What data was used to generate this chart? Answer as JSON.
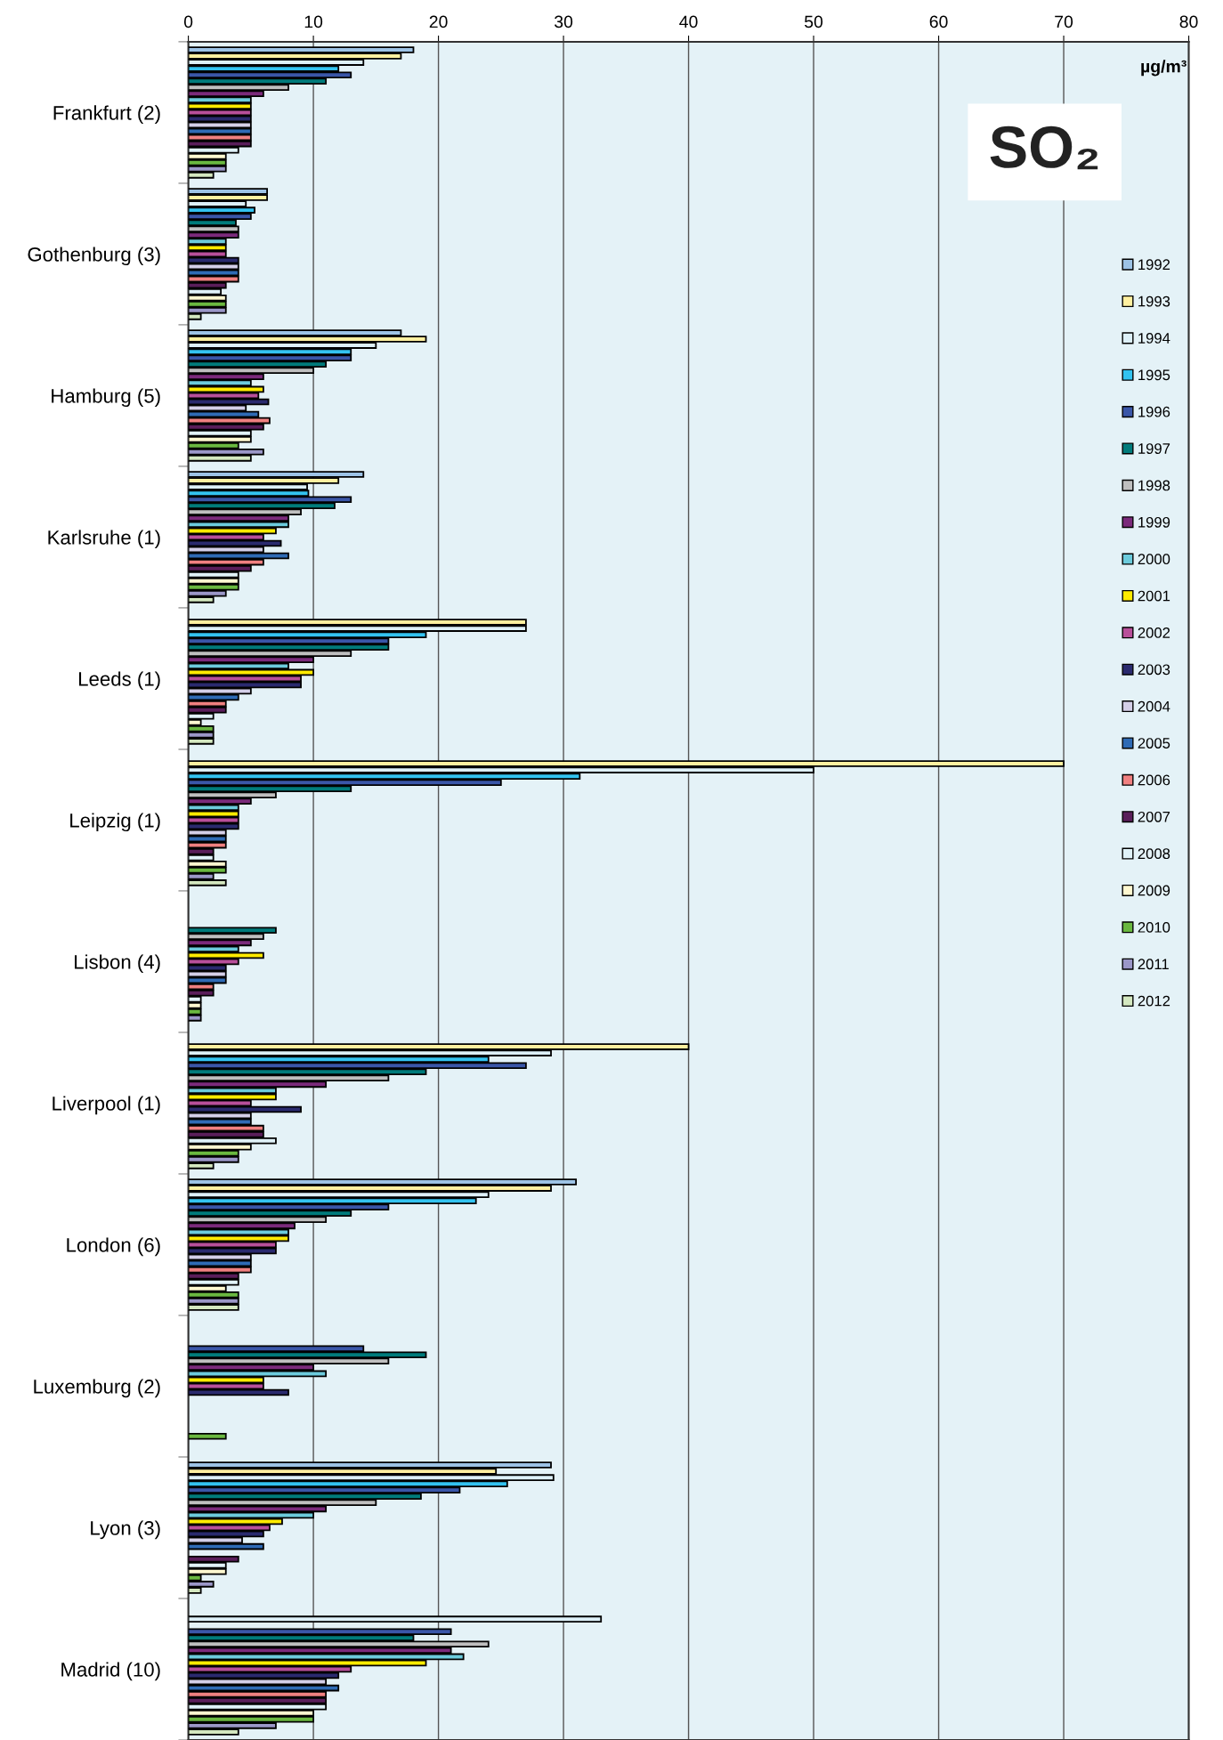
{
  "chart_data": {
    "type": "bar",
    "orientation": "horizontal",
    "title": "SO₂",
    "xlabel": "µg/m³",
    "categories": [
      "Frankfurt (2)",
      "Gothenburg (3)",
      "Hamburg (5)",
      "Karlsruhe (1)",
      "Leeds (1)",
      "Leipzig (1)",
      "Lisbon (4)",
      "Liverpool (1)",
      "London (6)",
      "Luxemburg (2)",
      "Lyon (3)",
      "Madrid (10)"
    ],
    "xlim": [
      0,
      80
    ],
    "xticks": [
      0,
      10,
      20,
      30,
      40,
      50,
      60,
      70,
      80
    ],
    "grid": "x",
    "legend": "top right",
    "series": [
      {
        "name": "1992",
        "color": "#9dc3e6",
        "values": [
          18,
          6.3,
          17,
          14,
          null,
          null,
          null,
          null,
          31,
          null,
          29,
          null
        ]
      },
      {
        "name": "1993",
        "color": "#fff0a0",
        "values": [
          17,
          6.3,
          19,
          12,
          27,
          70,
          null,
          40,
          29,
          null,
          24.6,
          null
        ]
      },
      {
        "name": "1994",
        "color": "#ddf0f8",
        "values": [
          14,
          4.6,
          15,
          9.5,
          27,
          50,
          null,
          29,
          24,
          null,
          29.2,
          33
        ]
      },
      {
        "name": "1995",
        "color": "#33c3f0",
        "values": [
          12,
          5.3,
          13,
          9.6,
          19,
          31.3,
          null,
          24,
          23,
          null,
          25.5,
          null
        ]
      },
      {
        "name": "1996",
        "color": "#3a56a8",
        "values": [
          13,
          5,
          13,
          13,
          16,
          25,
          null,
          27,
          16,
          14,
          21.7,
          21
        ]
      },
      {
        "name": "1997",
        "color": "#007b7b",
        "values": [
          11,
          3.8,
          11,
          11.7,
          16,
          13,
          7,
          19,
          13,
          19,
          18.6,
          18
        ]
      },
      {
        "name": "1998",
        "color": "#bfbfbf",
        "values": [
          8,
          4,
          10,
          9,
          13,
          7,
          6,
          16,
          11,
          16,
          15,
          24
        ]
      },
      {
        "name": "1999",
        "color": "#7b2a7b",
        "values": [
          6,
          4,
          6,
          8,
          10,
          5,
          5,
          11,
          8.5,
          10,
          11,
          21
        ]
      },
      {
        "name": "2000",
        "color": "#6ccbdc",
        "values": [
          5,
          3,
          5,
          8,
          8,
          4,
          4,
          7,
          8,
          11,
          10,
          22
        ]
      },
      {
        "name": "2001",
        "color": "#ffeb00",
        "values": [
          5,
          3,
          6,
          7,
          10,
          4,
          6,
          7,
          8,
          6,
          7.5,
          19
        ]
      },
      {
        "name": "2002",
        "color": "#b84f9a",
        "values": [
          5,
          3,
          5.6,
          6,
          9,
          4,
          4,
          5,
          7,
          6,
          6.5,
          13
        ]
      },
      {
        "name": "2003",
        "color": "#2a2a6e",
        "values": [
          5,
          4,
          6.4,
          7.4,
          9,
          4,
          3,
          9,
          7,
          8,
          6,
          12
        ]
      },
      {
        "name": "2004",
        "color": "#d4cfe8",
        "values": [
          5,
          4,
          4.6,
          6,
          5,
          3,
          3,
          5,
          5,
          null,
          4.3,
          11
        ]
      },
      {
        "name": "2005",
        "color": "#2f6bb5",
        "values": [
          5,
          4,
          5.6,
          8,
          4,
          3,
          3,
          5,
          5,
          null,
          6,
          12
        ]
      },
      {
        "name": "2006",
        "color": "#f08080",
        "values": [
          5,
          4,
          6.5,
          6,
          3,
          3,
          2,
          6,
          5,
          null,
          null,
          11
        ]
      },
      {
        "name": "2007",
        "color": "#5a1e5a",
        "values": [
          5,
          3,
          6,
          5,
          3,
          2,
          2,
          6,
          4,
          null,
          4,
          11
        ]
      },
      {
        "name": "2008",
        "color": "#e0f2f8",
        "values": [
          4,
          2.6,
          5,
          4,
          2,
          2,
          1,
          7,
          4,
          null,
          3,
          11
        ]
      },
      {
        "name": "2009",
        "color": "#fff8d0",
        "values": [
          3,
          3,
          5,
          4,
          1,
          3,
          1,
          5,
          3,
          null,
          3,
          10
        ]
      },
      {
        "name": "2010",
        "color": "#6ab840",
        "values": [
          3,
          3,
          4,
          4,
          2,
          3,
          1,
          4,
          4,
          3,
          1,
          10
        ]
      },
      {
        "name": "2011",
        "color": "#9b97c8",
        "values": [
          3,
          3,
          6,
          3,
          2,
          2,
          1,
          4,
          4,
          null,
          2,
          7
        ]
      },
      {
        "name": "2012",
        "color": "#d4e8c0",
        "values": [
          2,
          1,
          5,
          2,
          2,
          3,
          null,
          2,
          4,
          null,
          1,
          4
        ]
      }
    ]
  }
}
